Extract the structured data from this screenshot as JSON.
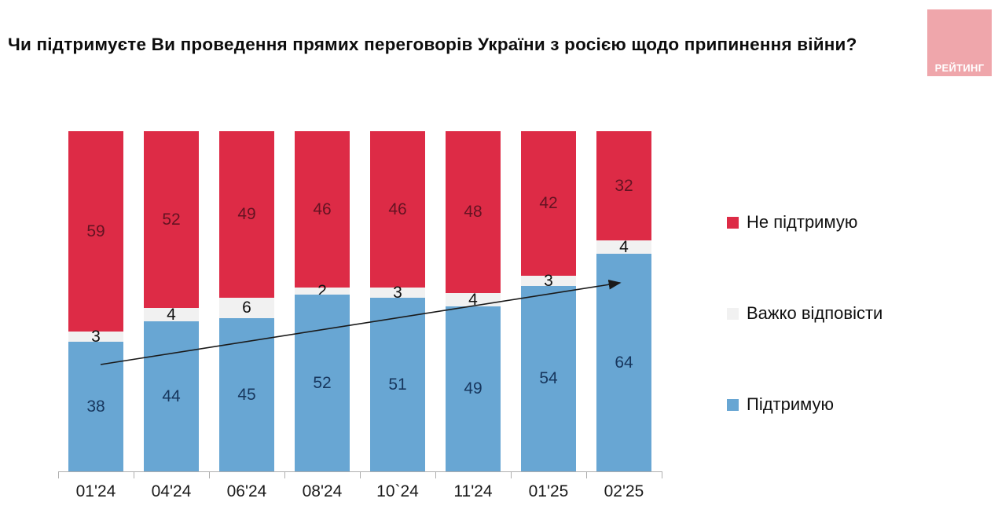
{
  "header": {
    "title": "Чи підтримуєте Ви проведення прямих переговорів України з росією щодо припинення війни?",
    "logo_text": "РЕЙТИНГ"
  },
  "colors": {
    "support": "#68a6d3",
    "hard": "#f1f1f1",
    "oppose": "#dd2b46",
    "support_label": "#17365d",
    "hard_label": "#111111",
    "oppose_label": "#641322",
    "logo_bg": "#efa6ab",
    "axis": "#aeaeae",
    "arrow": "#1a1a1a"
  },
  "legend": [
    {
      "label": "Не підтримую",
      "color_key": "oppose"
    },
    {
      "label": "Важко відповісти",
      "color_key": "hard"
    },
    {
      "label": "Підтримую",
      "color_key": "support"
    }
  ],
  "chart_data": {
    "type": "bar",
    "stacked": true,
    "unit": "percent",
    "title": "Чи підтримуєте Ви проведення прямих переговорів України з росією щодо припинення війни?",
    "categories": [
      "01'24",
      "04'24",
      "06'24",
      "08'24",
      "10`24",
      "11'24",
      "01'25",
      "02'25"
    ],
    "series": [
      {
        "name": "Підтримую",
        "values": [
          38,
          44,
          45,
          52,
          51,
          49,
          54,
          64
        ]
      },
      {
        "name": "Важко відповісти",
        "values": [
          3,
          4,
          6,
          2,
          3,
          4,
          3,
          4
        ]
      },
      {
        "name": "Не підтримую",
        "values": [
          59,
          52,
          49,
          46,
          46,
          48,
          42,
          32
        ]
      }
    ],
    "stack_order_top_to_bottom": [
      "Не підтримую",
      "Важко відповісти",
      "Підтримую"
    ],
    "legend_position": "right",
    "ylim": [
      0,
      100
    ],
    "grid": false,
    "annotations": [
      "upward trend arrow across the Підтримую segments from 01'24 to 02'25"
    ]
  }
}
